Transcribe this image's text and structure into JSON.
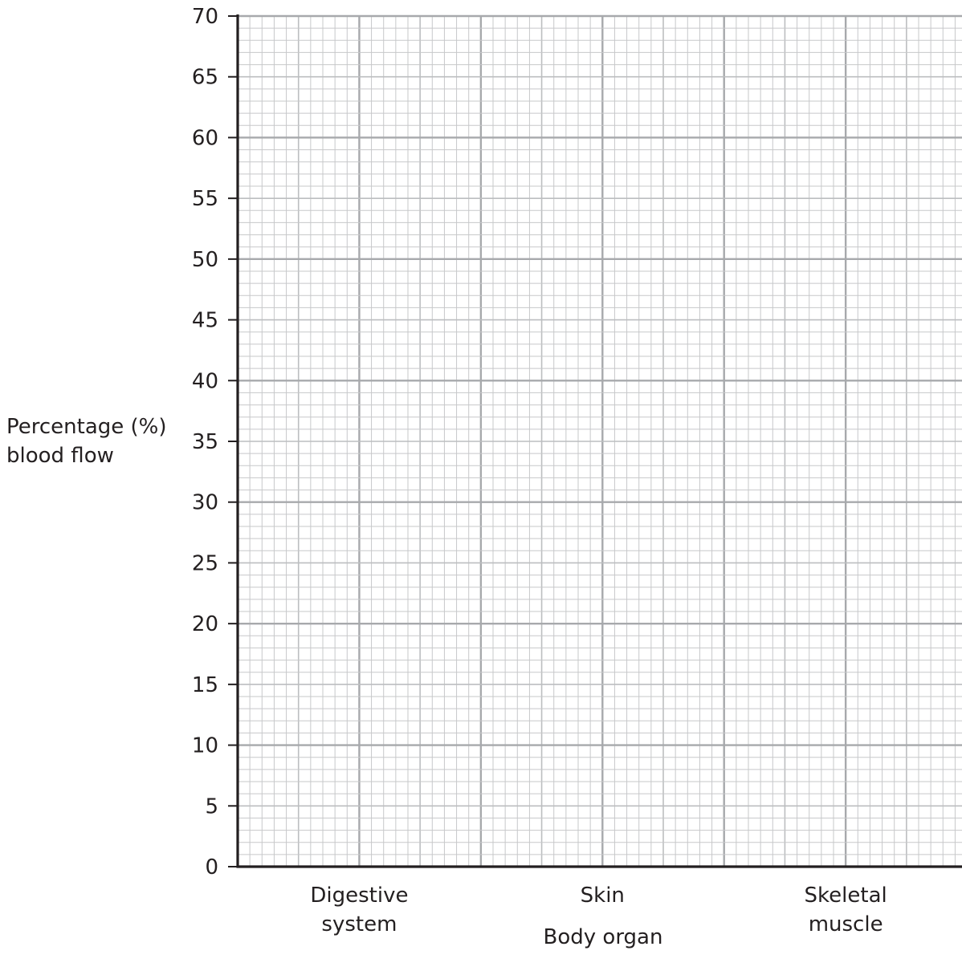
{
  "chart_data": {
    "type": "bar",
    "categories": [
      "Digestive system",
      "Skin",
      "Skeletal muscle"
    ],
    "category_label_lines": [
      [
        "Digestive",
        "system"
      ],
      [
        "Skin"
      ],
      [
        "Skeletal",
        "muscle"
      ]
    ],
    "series": [],
    "xlabel": "Body organ",
    "ylabel_lines": [
      "Percentage (%)",
      "blood flow"
    ],
    "ylim": [
      0,
      70
    ],
    "yticks": [
      0,
      5,
      10,
      15,
      20,
      25,
      30,
      35,
      40,
      45,
      50,
      55,
      60,
      65,
      70
    ],
    "grid": true,
    "grid_minor_step": 1,
    "colors": {
      "axis": "#231f20",
      "grid_major": "#a7a9ac",
      "grid_mid": "#bcbec0",
      "grid_minor": "#c7c8ca"
    }
  }
}
